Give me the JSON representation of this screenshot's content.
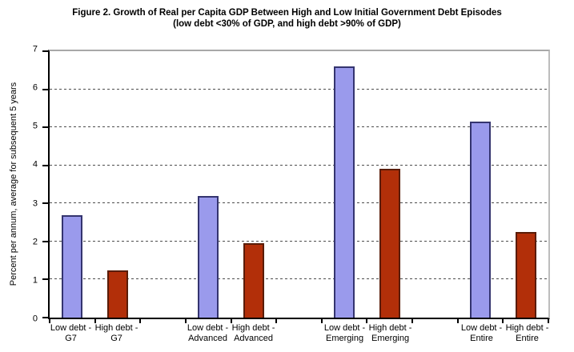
{
  "chart_data": {
    "type": "bar",
    "title": "Figure 2. Growth of Real per Capita GDP Between High and Low Initial Government Debt  Episodes",
    "subtitle": "(low debt <30% of GDP, and high debt >90% of GDP)",
    "ylabel": "Percent per annum, average for subsequent 5 years",
    "xlabel": "",
    "ylim": [
      0,
      7
    ],
    "yticks": [
      0,
      1,
      2,
      3,
      4,
      5,
      6,
      7
    ],
    "grid": "horizontal dashed, at each integer",
    "legend": "none",
    "slots": 11,
    "categories": [
      "Low debt - G7",
      "High debt - G7",
      "Low debt - Advanced",
      "High debt - Advanced",
      "Low debt - Emerging",
      "High debt - Emerging",
      "Low debt - Entire",
      "High debt - Entire"
    ],
    "values": [
      2.7,
      1.25,
      3.2,
      1.95,
      6.6,
      3.9,
      5.15,
      2.25
    ],
    "bars": [
      {
        "slot": 0,
        "series": "Low debt",
        "label_line1": "Low debt -",
        "label_line2": "G7",
        "category": "Low debt - G7",
        "value": 2.7,
        "color_key": "low"
      },
      {
        "slot": 1,
        "series": "High debt",
        "label_line1": "High debt -",
        "label_line2": "G7",
        "category": "High debt - G7",
        "value": 1.25,
        "color_key": "high"
      },
      {
        "slot": 3,
        "series": "Low debt",
        "label_line1": "Low debt -",
        "label_line2": "Advanced",
        "category": "Low debt - Advanced",
        "value": 3.2,
        "color_key": "low"
      },
      {
        "slot": 4,
        "series": "High debt",
        "label_line1": "High debt -",
        "label_line2": "Advanced",
        "category": "High debt - Advanced",
        "value": 1.95,
        "color_key": "high"
      },
      {
        "slot": 6,
        "series": "Low debt",
        "label_line1": "Low debt -",
        "label_line2": "Emerging",
        "category": "Low debt - Emerging",
        "value": 6.6,
        "color_key": "low"
      },
      {
        "slot": 7,
        "series": "High debt",
        "label_line1": "High debt -",
        "label_line2": "Emerging",
        "category": "High debt - Emerging",
        "value": 3.9,
        "color_key": "high"
      },
      {
        "slot": 9,
        "series": "Low debt",
        "label_line1": "Low debt -",
        "label_line2": "Entire",
        "category": "Low debt - Entire",
        "value": 5.15,
        "color_key": "low"
      },
      {
        "slot": 10,
        "series": "High debt",
        "label_line1": "High debt -",
        "label_line2": "Entire",
        "category": "High debt - Entire",
        "value": 2.25,
        "color_key": "high"
      }
    ],
    "colors": {
      "low_fill": "#9A9AEC",
      "low_border": "#34346F",
      "high_fill": "#B22F09",
      "high_border": "#5A1C07",
      "axis": "#000000",
      "plot_border_gray": "#A8A8A8",
      "gridline": "#4D4D4D",
      "background": "#FFFFFF"
    }
  }
}
